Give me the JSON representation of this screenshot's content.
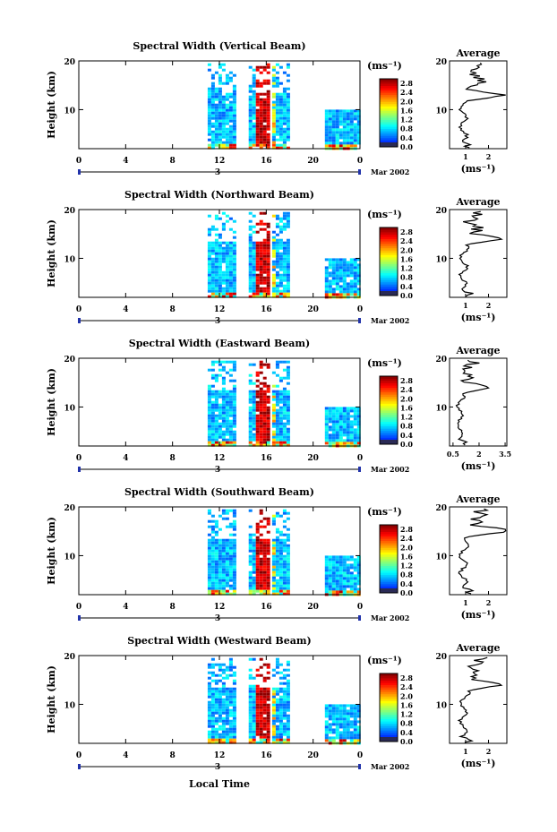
{
  "figure": {
    "xlabel": "Local Time",
    "cbar_unit": "(ms⁻¹)",
    "date_label": "Mar 2002",
    "day_label": "3",
    "avg_title": "Average",
    "avg_unit": "(ms⁻¹)"
  },
  "chart_data": [
    {
      "type": "heatmap",
      "title": "Spectral Width (Vertical Beam)",
      "ylabel": "Height (km)",
      "xlim": [
        0,
        24
      ],
      "ylim": [
        2,
        20
      ],
      "xticks": [
        "0",
        "4",
        "8",
        "12",
        "16",
        "20",
        "0"
      ],
      "yticks": [
        "10",
        "20"
      ],
      "colorbar": {
        "ticks": [
          "0.0",
          "0.4",
          "0.8",
          "1.2",
          "1.6",
          "2.0",
          "2.4",
          "2.8"
        ],
        "range": [
          0,
          3.0
        ]
      },
      "data_intervals": [
        [
          11,
          13.2
        ],
        [
          14.5,
          16.2
        ],
        [
          16.5,
          17.8
        ],
        [
          21,
          23.8
        ]
      ],
      "average": {
        "xticks": [
          "1",
          "2"
        ],
        "xlim": [
          0.3,
          2.8
        ],
        "peak_height": 13
      }
    },
    {
      "type": "heatmap",
      "title": "Spectral Width (Northward Beam)",
      "ylabel": "Height (km)",
      "xlim": [
        0,
        24
      ],
      "ylim": [
        2,
        20
      ],
      "xticks": [
        "0",
        "4",
        "8",
        "12",
        "16",
        "20",
        "0"
      ],
      "yticks": [
        "10",
        "20"
      ],
      "colorbar": {
        "ticks": [
          "0.0",
          "0.4",
          "0.8",
          "1.2",
          "1.6",
          "2.0",
          "2.4",
          "2.8"
        ],
        "range": [
          0,
          3.0
        ]
      },
      "data_intervals": [
        [
          11,
          13.2
        ],
        [
          14.5,
          16.2
        ],
        [
          16.5,
          17.8
        ],
        [
          21,
          23.8
        ]
      ],
      "average": {
        "xticks": [
          "1",
          "2"
        ],
        "xlim": [
          0.3,
          2.8
        ],
        "peak_height": 14
      }
    },
    {
      "type": "heatmap",
      "title": "Spectral Width (Eastward Beam)",
      "ylabel": "Height (km)",
      "xlim": [
        0,
        24
      ],
      "ylim": [
        2,
        20
      ],
      "xticks": [
        "0",
        "4",
        "8",
        "12",
        "16",
        "20",
        "0"
      ],
      "yticks": [
        "10",
        "20"
      ],
      "colorbar": {
        "ticks": [
          "0.0",
          "0.4",
          "0.8",
          "1.2",
          "1.6",
          "2.0",
          "2.4",
          "2.8"
        ],
        "range": [
          0,
          3.0
        ]
      },
      "data_intervals": [
        [
          11,
          13.2
        ],
        [
          14.5,
          16.2
        ],
        [
          16.5,
          17.8
        ],
        [
          21,
          23.8
        ]
      ],
      "average": {
        "xticks": [
          "0.5",
          "2",
          "3.5"
        ],
        "xlim": [
          0.3,
          3.6
        ],
        "peak_height": 14
      }
    },
    {
      "type": "heatmap",
      "title": "Spectral Width (Southward Beam)",
      "ylabel": "Height (km)",
      "xlim": [
        0,
        24
      ],
      "ylim": [
        2,
        20
      ],
      "xticks": [
        "0",
        "4",
        "8",
        "12",
        "16",
        "20",
        "0"
      ],
      "yticks": [
        "10",
        "20"
      ],
      "colorbar": {
        "ticks": [
          "0.0",
          "0.4",
          "0.8",
          "1.2",
          "1.6",
          "2.0",
          "2.4",
          "2.8"
        ],
        "range": [
          0,
          3.0
        ]
      },
      "data_intervals": [
        [
          11,
          13.2
        ],
        [
          14.5,
          16.2
        ],
        [
          16.5,
          17.8
        ],
        [
          21,
          23.8
        ]
      ],
      "average": {
        "xticks": [
          "1",
          "2"
        ],
        "xlim": [
          0.3,
          2.8
        ],
        "peak_height": 15
      }
    },
    {
      "type": "heatmap",
      "title": "Spectral Width (Westward Beam)",
      "ylabel": "Height (km)",
      "xlim": [
        0,
        24
      ],
      "ylim": [
        2,
        20
      ],
      "xticks": [
        "0",
        "4",
        "8",
        "12",
        "16",
        "20",
        "0"
      ],
      "yticks": [
        "10",
        "20"
      ],
      "colorbar": {
        "ticks": [
          "0.0",
          "0.4",
          "0.8",
          "1.2",
          "1.6",
          "2.0",
          "2.4",
          "2.8"
        ],
        "range": [
          0,
          3.0
        ]
      },
      "data_intervals": [
        [
          11,
          13.2
        ],
        [
          14.5,
          16.2
        ],
        [
          16.5,
          17.8
        ],
        [
          21,
          23.8
        ]
      ],
      "average": {
        "xticks": [
          "1",
          "2"
        ],
        "xlim": [
          0.3,
          2.8
        ],
        "peak_height": 14
      }
    }
  ]
}
